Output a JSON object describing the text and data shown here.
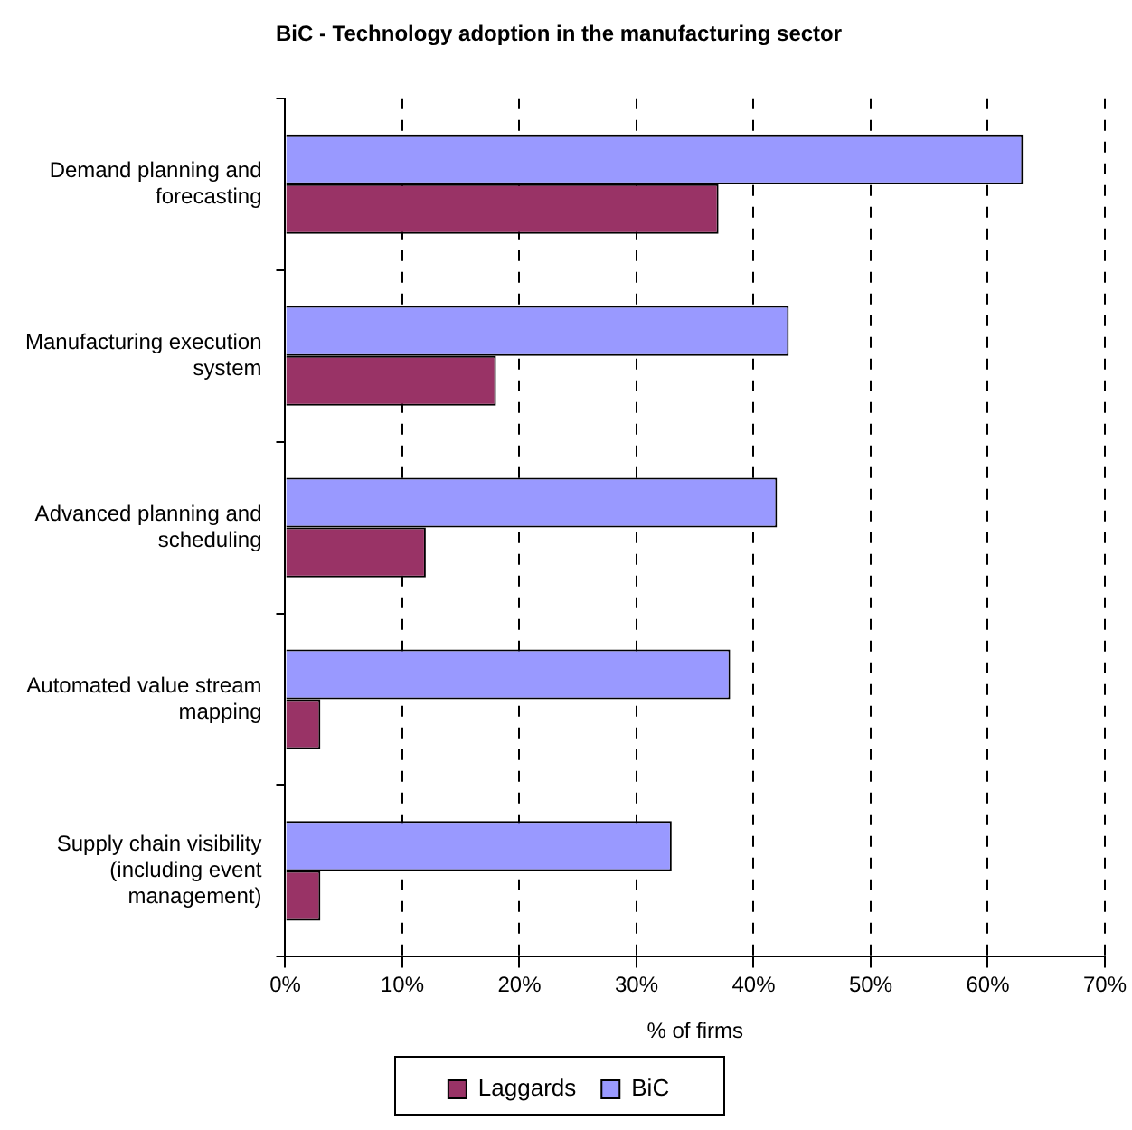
{
  "chart_data": {
    "type": "bar",
    "orientation": "horizontal",
    "title": "BiC - Technology adoption in the manufacturing sector",
    "xlabel": "% of firms",
    "categories": [
      "Demand planning and forecasting",
      "Manufacturing execution system",
      "Advanced planning and scheduling",
      "Automated value stream mapping",
      "Supply chain visibility (including event management)"
    ],
    "series": [
      {
        "name": "BiC",
        "color": "#9999ff",
        "values": [
          63,
          43,
          42,
          38,
          33
        ]
      },
      {
        "name": "Laggards",
        "color": "#993366",
        "values": [
          37,
          18,
          12,
          3,
          3
        ]
      }
    ],
    "xlim": [
      0,
      70
    ],
    "xticks": [
      {
        "value": 0,
        "label": "0%"
      },
      {
        "value": 10,
        "label": "10%"
      },
      {
        "value": 20,
        "label": "20%"
      },
      {
        "value": 30,
        "label": "30%"
      },
      {
        "value": 40,
        "label": "40%"
      },
      {
        "value": 50,
        "label": "50%"
      },
      {
        "value": 60,
        "label": "60%"
      },
      {
        "value": 70,
        "label": "70%"
      }
    ],
    "grid": "x",
    "legend": "bottom"
  }
}
